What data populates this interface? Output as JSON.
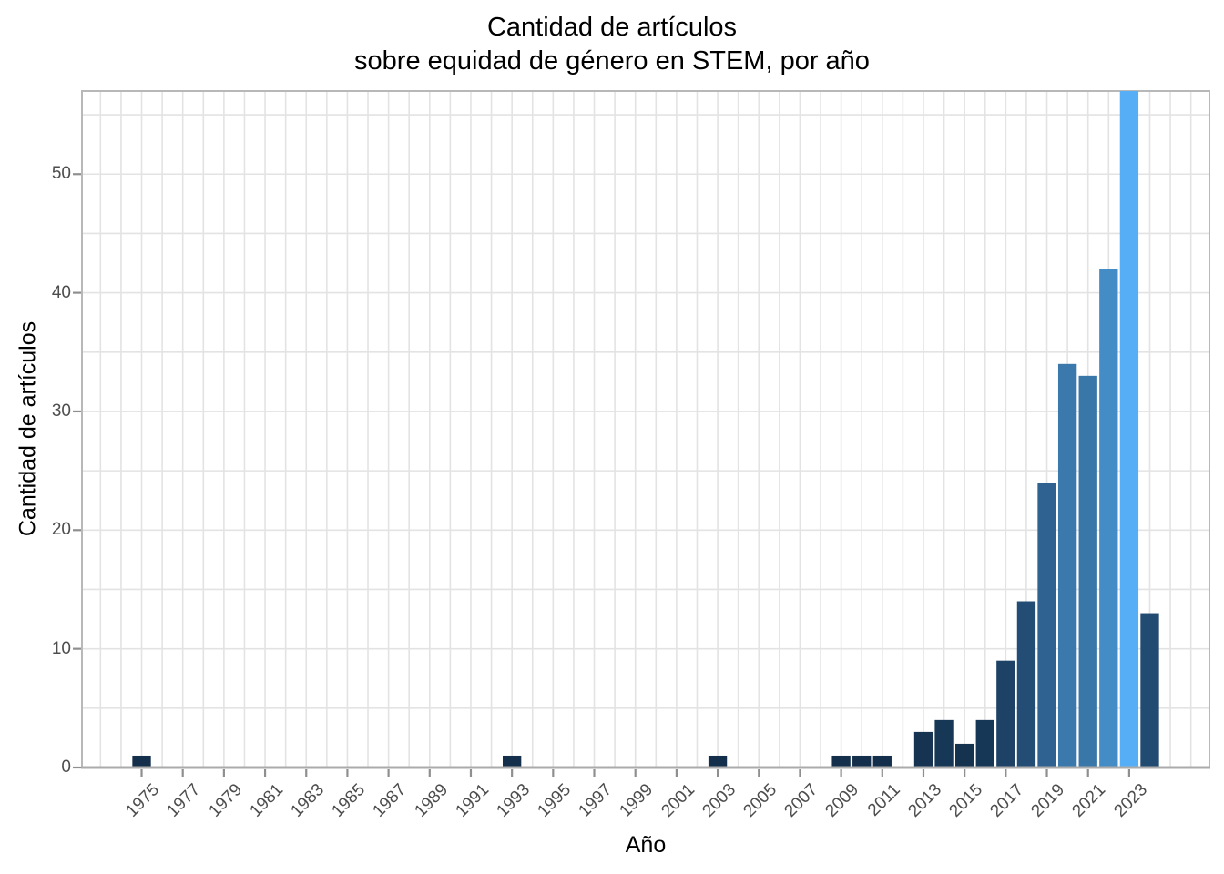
{
  "chart_data": {
    "type": "bar",
    "title_lines": [
      "Cantidad de artículos",
      "sobre equidad de género en STEM, por año"
    ],
    "title": "Cantidad de artículos\nsobre equidad de género en STEM, por año",
    "xlabel": "Año",
    "ylabel": "Cantidad de artículos",
    "x_tick_labels": [
      "1975",
      "1977",
      "1979",
      "1981",
      "1983",
      "1985",
      "1987",
      "1989",
      "1991",
      "1993",
      "1995",
      "1997",
      "1999",
      "2001",
      "2003",
      "2005",
      "2007",
      "2009",
      "2011",
      "2013",
      "2015",
      "2017",
      "2019",
      "2021",
      "2023"
    ],
    "y_tick_labels": [
      "0",
      "10",
      "20",
      "30",
      "40",
      "50"
    ],
    "ylim": [
      0,
      57
    ],
    "x_domain_years": [
      1972.1,
      2026.9
    ],
    "grid": {
      "on": true,
      "color": "#e3e3e3",
      "x_year_start": 1973,
      "x_year_end": 2026,
      "y_step": 5
    },
    "axis_style": {
      "panel_border_color": "#b8b8b8",
      "axis_line_color": "#ababab",
      "tick_mark_color": "#8f8f8f",
      "tick_label_color": "#4d4d4d"
    },
    "legend": "none",
    "bar_width_years": 0.9,
    "fill_gradient": {
      "mapped_to": "value",
      "low": "#142f4b",
      "high": "#56aff6"
    },
    "bars": [
      {
        "year": 1975,
        "value": 1,
        "color": "#142f4b"
      },
      {
        "year": 1993,
        "value": 1,
        "color": "#142f4b"
      },
      {
        "year": 2003,
        "value": 1,
        "color": "#142f4b"
      },
      {
        "year": 2009,
        "value": 1,
        "color": "#142f4b"
      },
      {
        "year": 2010,
        "value": 1,
        "color": "#142f4b"
      },
      {
        "year": 2011,
        "value": 1,
        "color": "#142f4b"
      },
      {
        "year": 2013,
        "value": 3,
        "color": "#163452"
      },
      {
        "year": 2014,
        "value": 4,
        "color": "#173756"
      },
      {
        "year": 2015,
        "value": 2,
        "color": "#15324f"
      },
      {
        "year": 2016,
        "value": 4,
        "color": "#173756"
      },
      {
        "year": 2017,
        "value": 9,
        "color": "#1d4266"
      },
      {
        "year": 2018,
        "value": 14,
        "color": "#234d74"
      },
      {
        "year": 2019,
        "value": 24,
        "color": "#2f6290"
      },
      {
        "year": 2020,
        "value": 34,
        "color": "#3b79ac"
      },
      {
        "year": 2021,
        "value": 33,
        "color": "#3a77a9"
      },
      {
        "year": 2022,
        "value": 42,
        "color": "#448cc5"
      },
      {
        "year": 2023,
        "value": 57,
        "color": "#56aff6"
      },
      {
        "year": 2024,
        "value": 13,
        "color": "#224b71"
      }
    ]
  }
}
